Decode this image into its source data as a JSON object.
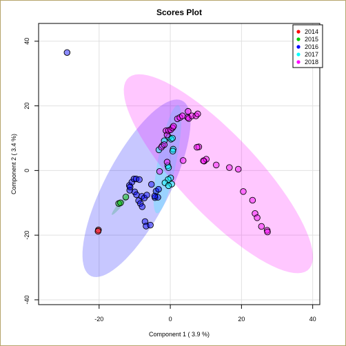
{
  "chart_data": {
    "type": "scatter",
    "title": "Scores Plot",
    "xlabel": "Component 1 ( 3.9 %)",
    "ylabel": "Component 2 ( 3.4 %)",
    "xlim": [
      -37,
      42
    ],
    "ylim": [
      -41.5,
      45.5
    ],
    "xticks": [
      -20,
      0,
      20,
      40
    ],
    "yticks": [
      -40,
      -20,
      0,
      20,
      40
    ],
    "grid": true,
    "legend_position": "top-right",
    "series": [
      {
        "name": "2014",
        "color": "#ff0000",
        "points": [
          [
            -20.2,
            -18.4
          ],
          [
            -20.3,
            -18.8
          ]
        ],
        "ellipse": null
      },
      {
        "name": "2015",
        "color": "#00cc00",
        "points": [
          [
            -14.5,
            -10.2
          ],
          [
            -14.0,
            -10.0
          ],
          [
            -12.5,
            -8.2
          ]
        ],
        "ellipse": {
          "cx": -14.0,
          "cy": -10.5,
          "rx": 4.0,
          "ry": 0.6,
          "angle_deg": 53
        }
      },
      {
        "name": "2016",
        "color": "#0000ff",
        "points": [
          [
            -29,
            36.5
          ],
          [
            -11.5,
            -4.6
          ],
          [
            -11.4,
            -6.1
          ],
          [
            -10.8,
            -3.6
          ],
          [
            -10.2,
            -2.6
          ],
          [
            -9.6,
            -2.6
          ],
          [
            -11.3,
            -5.1
          ],
          [
            -10.0,
            -6.6
          ],
          [
            -9.5,
            -7.5
          ],
          [
            -8.9,
            -9.3
          ],
          [
            -8.4,
            -10.2
          ],
          [
            -8.0,
            -8.0
          ],
          [
            -7.3,
            -8.5
          ],
          [
            -7.9,
            -11.2
          ],
          [
            -6.6,
            -7.6
          ],
          [
            -5.3,
            -4.3
          ],
          [
            -4.3,
            -8.4
          ],
          [
            -3.5,
            -8.3
          ],
          [
            -4.0,
            -6.4
          ],
          [
            -3.3,
            -5.8
          ],
          [
            -7.1,
            -15.8
          ],
          [
            -6.8,
            -17.2
          ],
          [
            -5.6,
            -16.9
          ],
          [
            -8.7,
            -2.8
          ],
          [
            -4.4,
            -7.9
          ]
        ],
        "ellipse": {
          "cx": -9.5,
          "cy": -5.5,
          "rx": 30.0,
          "ry": 9.2,
          "angle_deg": 65
        }
      },
      {
        "name": "2017",
        "color": "#00ffff",
        "points": [
          [
            -3.2,
            6.4
          ],
          [
            -2.2,
            7.7
          ],
          [
            -1.7,
            9.2
          ],
          [
            -0.4,
            10.3
          ],
          [
            0.2,
            9.7
          ],
          [
            0.6,
            10.0
          ],
          [
            0.8,
            6.6
          ],
          [
            0.7,
            6.0
          ],
          [
            -0.7,
            1.5
          ],
          [
            -0.5,
            0.9
          ],
          [
            0.1,
            -2.3
          ],
          [
            -0.6,
            -2.8
          ],
          [
            -1.5,
            -3.8
          ],
          [
            0.4,
            -4.2
          ],
          [
            -0.5,
            -4.7
          ]
        ],
        "ellipse": {
          "cx": -0.8,
          "cy": 3.5,
          "rx": 17.0,
          "ry": 2.6,
          "angle_deg": 80
        }
      },
      {
        "name": "2018",
        "color": "#ff00ff",
        "points": [
          [
            -2.5,
            7.2
          ],
          [
            -1.7,
            8.0
          ],
          [
            -1.2,
            12.3
          ],
          [
            -0.9,
            11.0
          ],
          [
            -0.5,
            12.4
          ],
          [
            0.1,
            12.6
          ],
          [
            0.6,
            13.2
          ],
          [
            0.9,
            13.7
          ],
          [
            2.0,
            16.0
          ],
          [
            2.7,
            16.4
          ],
          [
            3.4,
            16.9
          ],
          [
            4.9,
            16.4
          ],
          [
            5.0,
            18.3
          ],
          [
            5.2,
            16.1
          ],
          [
            6.1,
            16.9
          ],
          [
            7.2,
            16.9
          ],
          [
            7.7,
            17.5
          ],
          [
            8.0,
            7.3
          ],
          [
            7.5,
            7.2
          ],
          [
            9.5,
            2.9
          ],
          [
            10.1,
            3.5
          ],
          [
            9.3,
            3.0
          ],
          [
            12.9,
            1.7
          ],
          [
            16.6,
            0.9
          ],
          [
            19.1,
            0.4
          ],
          [
            3.6,
            3.1
          ],
          [
            -0.9,
            2.6
          ],
          [
            -3.0,
            -0.3
          ],
          [
            20.5,
            -6.5
          ],
          [
            23.1,
            -9.2
          ],
          [
            23.8,
            -13.3
          ],
          [
            24.4,
            -14.6
          ],
          [
            25.6,
            -17.3
          ],
          [
            27.2,
            -18.5
          ],
          [
            27.3,
            -19.0
          ]
        ],
        "ellipse": {
          "cx": 13.5,
          "cy": -1.0,
          "rx": 39.0,
          "ry": 11.5,
          "angle_deg": -50
        }
      }
    ]
  }
}
